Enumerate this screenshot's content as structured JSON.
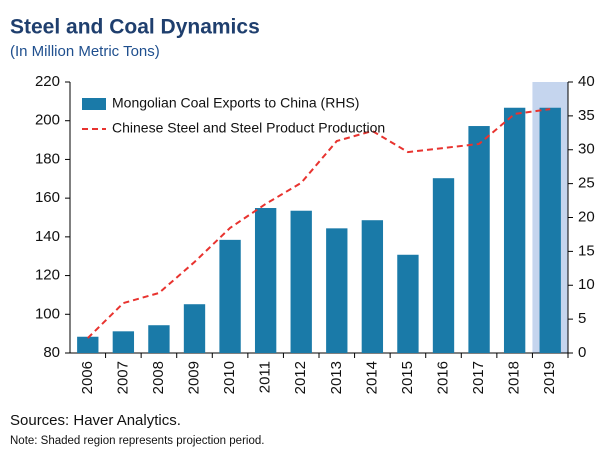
{
  "chart_data": {
    "type": "bar_line",
    "title": "Steel and Coal Dynamics",
    "subtitle": "(In Million Metric Tons)",
    "categories": [
      "2006",
      "2007",
      "2008",
      "2009",
      "2010",
      "2011",
      "2012",
      "2013",
      "2014",
      "2015",
      "2016",
      "2017",
      "2018",
      "2019"
    ],
    "series": [
      {
        "name": "Mongolian Coal Exports to China (RHS)",
        "type": "bar",
        "axis": "y2",
        "color": "#1a7aa8",
        "values": [
          2.4,
          3.2,
          4.1,
          7.2,
          16.7,
          21.4,
          21.0,
          18.4,
          19.6,
          14.5,
          25.8,
          33.5,
          36.2,
          36.2
        ]
      },
      {
        "name": "Chinese Steel and Steel Product Production",
        "type": "line",
        "axis": "y",
        "color": "#e8332f",
        "values": [
          87.7,
          105.8,
          111,
          127,
          144.6,
          157,
          167.9,
          189.5,
          194.7,
          183.8,
          185.9,
          188,
          203.5,
          206
        ]
      }
    ],
    "ylim": [
      80,
      220
    ],
    "yticks": [
      80,
      100,
      120,
      140,
      160,
      180,
      200,
      220
    ],
    "y2lim": [
      0,
      40
    ],
    "y2ticks": [
      0,
      5,
      10,
      15,
      20,
      25,
      30,
      35,
      40
    ],
    "shaded_categories": [
      "2019"
    ],
    "shade_color": "#c5d5ee",
    "legend": "upper left",
    "annotations": [
      "Sources: Haver Analytics.",
      "Note: Shaded region represents projection period."
    ]
  }
}
